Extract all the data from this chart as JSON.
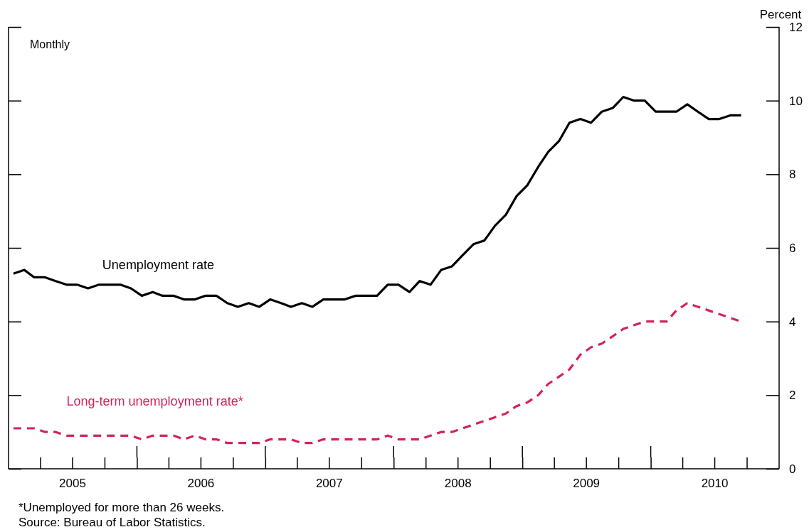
{
  "chart_data": {
    "type": "line",
    "ylabel": "Percent",
    "annotations": [
      "Monthly",
      "*Unemployed for more than 26 weeks.",
      "Source: Bureau of Labor Statistics."
    ],
    "x": [
      "2005-01-15",
      "2005-02-15",
      "2005-03-15",
      "2005-04-15",
      "2005-05-15",
      "2005-06-15",
      "2005-07-15",
      "2005-08-15",
      "2005-09-15",
      "2005-10-15",
      "2005-11-15",
      "2005-12-15",
      "2006-01-15",
      "2006-02-15",
      "2006-03-15",
      "2006-04-15",
      "2006-05-15",
      "2006-06-15",
      "2006-07-15",
      "2006-08-15",
      "2006-09-15",
      "2006-10-15",
      "2006-11-15",
      "2006-12-15",
      "2007-01-15",
      "2007-02-15",
      "2007-03-15",
      "2007-04-15",
      "2007-05-15",
      "2007-06-15",
      "2007-07-15",
      "2007-08-15",
      "2007-09-15",
      "2007-10-15",
      "2007-11-15",
      "2007-12-15",
      "2008-01-15",
      "2008-02-15",
      "2008-03-15",
      "2008-04-15",
      "2008-05-15",
      "2008-06-15",
      "2008-07-15",
      "2008-08-15",
      "2008-09-15",
      "2008-10-15",
      "2008-11-15",
      "2008-12-15",
      "2009-01-15",
      "2009-02-15",
      "2009-03-15",
      "2009-04-15",
      "2009-05-15",
      "2009-06-15",
      "2009-07-15",
      "2009-08-15",
      "2009-09-15",
      "2009-10-15",
      "2009-11-15",
      "2009-12-15",
      "2010-01-15",
      "2010-02-15",
      "2010-03-15",
      "2010-04-15",
      "2010-05-15",
      "2010-06-15",
      "2010-07-15",
      "2010-08-15",
      "2010-09-15"
    ],
    "series": [
      {
        "name": "Unemployment rate",
        "color": "#000000",
        "line_style": "solid",
        "values": [
          5.3,
          5.4,
          5.2,
          5.2,
          5.1,
          5.0,
          5.0,
          4.9,
          5.0,
          5.0,
          5.0,
          4.9,
          4.7,
          4.8,
          4.7,
          4.7,
          4.6,
          4.6,
          4.7,
          4.7,
          4.5,
          4.4,
          4.5,
          4.4,
          4.6,
          4.5,
          4.4,
          4.5,
          4.4,
          4.6,
          4.6,
          4.6,
          4.7,
          4.7,
          4.7,
          5.0,
          5.0,
          4.8,
          5.1,
          5.0,
          5.4,
          5.5,
          5.8,
          6.1,
          6.2,
          6.6,
          6.9,
          7.4,
          7.7,
          8.2,
          8.6,
          8.9,
          9.4,
          9.5,
          9.4,
          9.7,
          9.8,
          10.1,
          10.0,
          10.0,
          9.7,
          9.7,
          9.7,
          9.9,
          9.7,
          9.5,
          9.5,
          9.6,
          9.6
        ]
      },
      {
        "name": "Long-term unemployment rate*",
        "color": "#d4235a",
        "line_style": "dashed",
        "values": [
          1.1,
          1.1,
          1.1,
          1.0,
          1.0,
          0.9,
          0.9,
          0.9,
          0.9,
          0.9,
          0.9,
          0.9,
          0.8,
          0.9,
          0.9,
          0.9,
          0.8,
          0.9,
          0.8,
          0.8,
          0.7,
          0.7,
          0.7,
          0.7,
          0.8,
          0.8,
          0.8,
          0.7,
          0.7,
          0.8,
          0.8,
          0.8,
          0.8,
          0.8,
          0.8,
          0.9,
          0.8,
          0.8,
          0.8,
          0.9,
          1.0,
          1.0,
          1.1,
          1.2,
          1.3,
          1.4,
          1.5,
          1.7,
          1.8,
          2.0,
          2.3,
          2.5,
          2.7,
          3.1,
          3.3,
          3.4,
          3.6,
          3.8,
          3.9,
          4.0,
          4.0,
          4.0,
          4.3,
          4.5,
          4.4,
          4.3,
          4.2,
          4.1,
          4.0
        ]
      }
    ],
    "xlim": [
      "2005-01-01",
      "2011-01-01"
    ],
    "xticks": [
      {
        "value": "2005-04-01",
        "label": null
      },
      {
        "value": "2005-07-01",
        "label": "2005"
      },
      {
        "value": "2005-10-01",
        "label": null
      },
      {
        "value": "2006-01-01",
        "label": null
      },
      {
        "value": "2006-04-01",
        "label": null
      },
      {
        "value": "2006-07-01",
        "label": "2006"
      },
      {
        "value": "2006-10-01",
        "label": null
      },
      {
        "value": "2007-01-01",
        "label": null
      },
      {
        "value": "2007-04-01",
        "label": null
      },
      {
        "value": "2007-07-01",
        "label": "2007"
      },
      {
        "value": "2007-10-01",
        "label": null
      },
      {
        "value": "2008-01-01",
        "label": null
      },
      {
        "value": "2008-04-01",
        "label": null
      },
      {
        "value": "2008-07-01",
        "label": "2008"
      },
      {
        "value": "2008-10-01",
        "label": null
      },
      {
        "value": "2009-01-01",
        "label": null
      },
      {
        "value": "2009-04-01",
        "label": null
      },
      {
        "value": "2009-07-01",
        "label": "2009"
      },
      {
        "value": "2009-10-01",
        "label": null
      },
      {
        "value": "2010-01-01",
        "label": null
      },
      {
        "value": "2010-04-01",
        "label": null
      },
      {
        "value": "2010-07-01",
        "label": "2010"
      },
      {
        "value": "2010-10-01",
        "label": null
      }
    ],
    "ylim": [
      0,
      12
    ],
    "yticks": [
      0,
      2,
      4,
      6,
      8,
      10,
      12
    ],
    "grid": false,
    "legend": false,
    "marker": "none"
  }
}
